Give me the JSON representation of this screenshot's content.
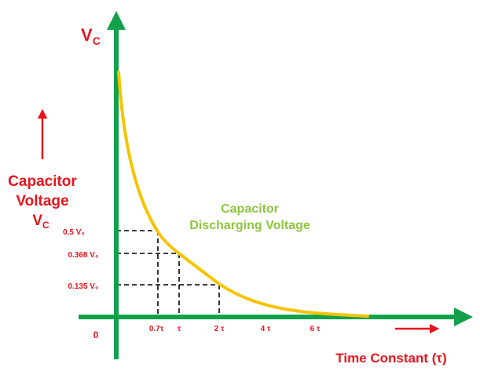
{
  "colors": {
    "axis": "#12a14b",
    "curve": "#f5c400",
    "label_red": "#e8141c",
    "curve_label": "#8cc63f",
    "guide": "#000000"
  },
  "labels": {
    "y_axis_symbol": "V",
    "y_axis_symbol_sub": "C",
    "left_title_line1": "Capacitor",
    "left_title_line2": "Voltage",
    "left_title_line3": "V",
    "left_title_line3_sub": "C",
    "curve_label_line1": "Capacitor",
    "curve_label_line2": "Discharging Voltage",
    "x_title": "Time Constant (τ)",
    "origin": "0"
  },
  "chart_data": {
    "type": "line",
    "curve": "exponential decay V = V0 e^(-t/τ)",
    "x_ticks": [
      "0.7τ",
      "τ",
      "2 τ",
      "4 τ",
      "6 τ"
    ],
    "y_marks": [
      "0.5 V₀",
      "0.368 V₀",
      "0.135 V₀"
    ],
    "guides": [
      {
        "x": "0.7τ",
        "y": "0.5 V₀"
      },
      {
        "x": "τ",
        "y": "0.368 V₀"
      },
      {
        "x": "2 τ",
        "y": "0.135 V₀"
      }
    ]
  }
}
